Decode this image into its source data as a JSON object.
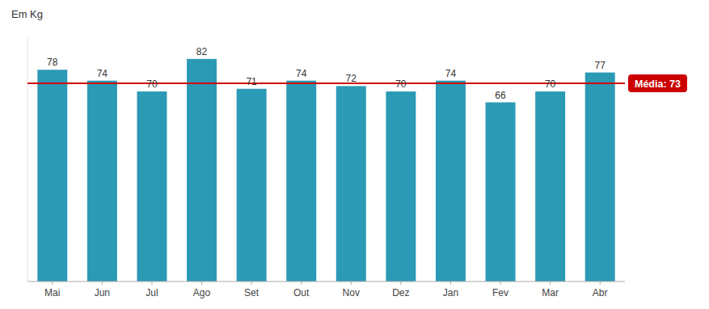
{
  "chart_data": {
    "type": "bar",
    "y_label": "Em Kg",
    "categories": [
      "Mai",
      "Jun",
      "Jul",
      "Ago",
      "Set",
      "Out",
      "Nov",
      "Dez",
      "Jan",
      "Fev",
      "Mar",
      "Abr"
    ],
    "values": [
      78,
      74,
      70,
      82,
      71,
      74,
      72,
      70,
      74,
      66,
      70,
      77
    ],
    "color": "#2A9AB5",
    "ylim": [
      0,
      90
    ],
    "grid": false,
    "data_labels": true,
    "tick_labels": "x",
    "annotations": [
      {
        "text": "Média: 73",
        "value": 73,
        "color": "#CC0000"
      }
    ]
  }
}
